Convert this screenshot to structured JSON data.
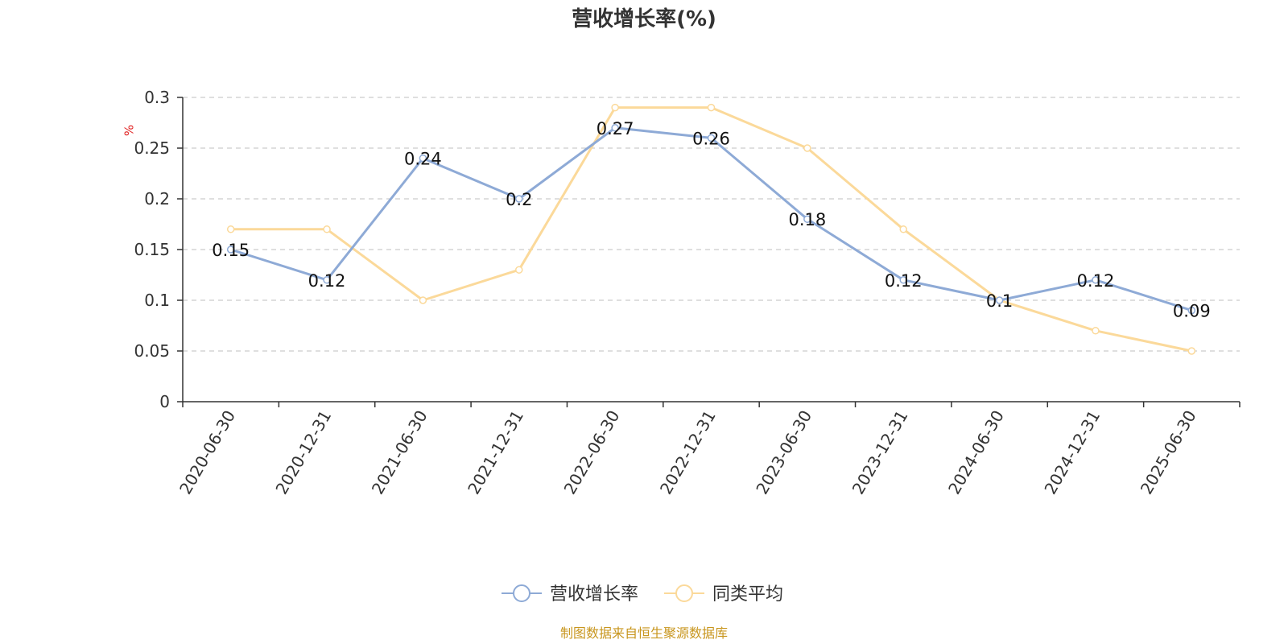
{
  "chart_data": {
    "type": "line",
    "title": "营收增长率(%)",
    "ylabel": "%",
    "categories": [
      "2020-06-30",
      "2020-12-31",
      "2021-06-30",
      "2021-12-31",
      "2022-06-30",
      "2022-12-31",
      "2023-06-30",
      "2023-12-31",
      "2024-06-30",
      "2024-12-31",
      "2025-06-30"
    ],
    "ylim": [
      0,
      0.3
    ],
    "yticks": [
      "0",
      "0.05",
      "0.1",
      "0.15",
      "0.2",
      "0.25",
      "0.3"
    ],
    "yticks_values": [
      0,
      0.05,
      0.1,
      0.15,
      0.2,
      0.25,
      0.3
    ],
    "grid": true,
    "legend_position": "bottom-center",
    "series": [
      {
        "name": "营收增长率",
        "color": "#8eaad6",
        "values": [
          0.15,
          0.12,
          0.24,
          0.2,
          0.27,
          0.26,
          0.18,
          0.12,
          0.1,
          0.12,
          0.09
        ],
        "labels": [
          "0.15",
          "0.12",
          "0.24",
          "0.2",
          "0.27",
          "0.26",
          "0.18",
          "0.12",
          "0.1",
          "0.12",
          "0.09"
        ]
      },
      {
        "name": "同类平均",
        "color": "#fbd99a",
        "values": [
          0.17,
          0.17,
          0.1,
          0.13,
          0.29,
          0.29,
          0.25,
          0.17,
          0.1,
          0.07,
          0.05
        ]
      }
    ],
    "source": "制图数据来自恒生聚源数据库",
    "source_color": "#c8961e",
    "unit_color": "#e02020"
  }
}
